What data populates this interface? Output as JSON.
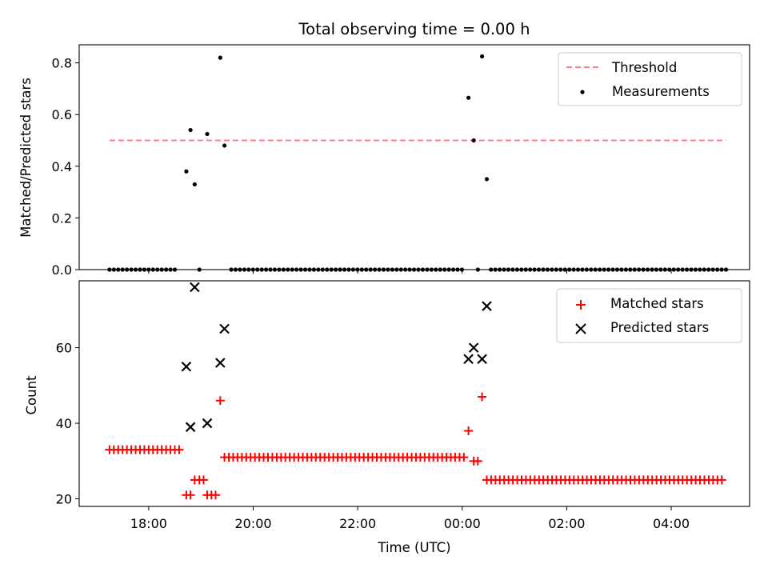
{
  "chart_data": [
    {
      "type": "scatter",
      "title": "Total observing time = 0.00 h",
      "xlabel": "",
      "ylabel": "Matched/Predicted stars",
      "xlim_hours": [
        16.67,
        29.5
      ],
      "ylim": [
        0,
        0.87
      ],
      "yticks": [
        0.0,
        0.2,
        0.4,
        0.6,
        0.8
      ],
      "ytick_labels": [
        "0.0",
        "0.2",
        "0.4",
        "0.6",
        "0.8"
      ],
      "legend_position": "upper right",
      "series": [
        {
          "name": "Threshold",
          "kind": "dashed-line",
          "color": "#ff7f7f",
          "x_hours": [
            17.25,
            29.05
          ],
          "y": [
            0.5,
            0.5
          ]
        },
        {
          "name": "Measurements",
          "kind": "points",
          "color": "#000000",
          "points": [
            [
              18.72,
              0.38
            ],
            [
              18.8,
              0.54
            ],
            [
              18.88,
              0.33
            ],
            [
              19.12,
              0.525
            ],
            [
              19.37,
              0.82
            ],
            [
              19.45,
              0.48
            ],
            [
              24.12,
              0.665
            ],
            [
              24.22,
              0.5
            ],
            [
              24.38,
              0.825
            ],
            [
              24.47,
              0.35
            ]
          ],
          "zero_segments": [
            {
              "from": 17.25,
              "to": 18.58,
              "step": 0.0833
            },
            {
              "from": 18.97,
              "to": 19.05,
              "step": 0.0833
            },
            {
              "from": 19.58,
              "to": 24.05,
              "step": 0.0833
            },
            {
              "from": 24.3,
              "to": 24.3,
              "step": 0.0833
            },
            {
              "from": 24.55,
              "to": 29.05,
              "step": 0.0833
            }
          ]
        }
      ]
    },
    {
      "type": "scatter",
      "xlabel": "Time (UTC)",
      "ylabel": "Count",
      "xlim_hours": [
        16.67,
        29.5
      ],
      "ylim": [
        18,
        77.7
      ],
      "yticks": [
        20,
        40,
        60
      ],
      "ytick_labels": [
        "20",
        "40",
        "60"
      ],
      "xticks_hours": [
        18,
        20,
        22,
        24,
        26,
        28
      ],
      "xtick_labels": [
        "18:00",
        "20:00",
        "22:00",
        "00:00",
        "02:00",
        "04:00"
      ],
      "legend_position": "upper right",
      "series": [
        {
          "name": "Matched stars",
          "marker": "plus",
          "color": "#ff0000",
          "points": [
            [
              18.72,
              21
            ],
            [
              18.8,
              21
            ],
            [
              18.88,
              25
            ],
            [
              18.97,
              25
            ],
            [
              19.05,
              25
            ],
            [
              19.12,
              21
            ],
            [
              19.2,
              21
            ],
            [
              19.28,
              21
            ],
            [
              19.37,
              46
            ],
            [
              24.12,
              38
            ],
            [
              24.22,
              30
            ],
            [
              24.3,
              30
            ],
            [
              24.38,
              47
            ]
          ],
          "constant_segments": [
            {
              "from": 17.25,
              "to": 18.65,
              "step": 0.0833,
              "value": 33
            },
            {
              "from": 19.45,
              "to": 24.05,
              "step": 0.0833,
              "value": 31
            },
            {
              "from": 24.47,
              "to": 29.05,
              "step": 0.0833,
              "value": 25
            }
          ]
        },
        {
          "name": "Predicted stars",
          "marker": "x",
          "color": "#000000",
          "points": [
            [
              18.72,
              55
            ],
            [
              18.8,
              39
            ],
            [
              18.88,
              76
            ],
            [
              19.12,
              40
            ],
            [
              19.37,
              56
            ],
            [
              19.45,
              65
            ],
            [
              24.12,
              57
            ],
            [
              24.22,
              60
            ],
            [
              24.38,
              57
            ],
            [
              24.47,
              71
            ]
          ]
        }
      ]
    }
  ]
}
